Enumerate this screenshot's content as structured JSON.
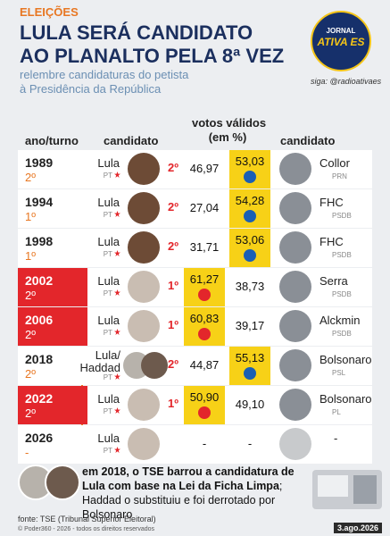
{
  "header": {
    "section": "ELEIÇÕES",
    "title_lines": [
      "LULA SERÁ CANDIDATO",
      "AO PLANALTO PELA 8ª VEZ"
    ],
    "subtitle_lines": [
      "relembre candidaturas do petista",
      "à Presidência da República"
    ],
    "logo_lines": [
      "JORNAL",
      "ATIVA ES"
    ],
    "credit": "siga: @radioativaes"
  },
  "table": {
    "columns": [
      "ano/turno",
      "candidato",
      "votos válidos",
      "(em %)",
      "candidato"
    ],
    "rows": [
      {
        "year": "1989",
        "turn": "2º",
        "candidate": [
          "Lula"
        ],
        "party": "PT",
        "place": "2º",
        "lula_pct": "46,97",
        "opp_pct": "53,03",
        "opponent": "Collor",
        "opp_party": "PRN",
        "winner": "opponent"
      },
      {
        "year": "1994",
        "turn": "1º",
        "candidate": [
          "Lula"
        ],
        "party": "PT",
        "place": "2º",
        "lula_pct": "27,04",
        "opp_pct": "54,28",
        "opponent": "FHC",
        "opp_party": "PSDB",
        "winner": "opponent"
      },
      {
        "year": "1998",
        "turn": "1º",
        "candidate": [
          "Lula"
        ],
        "party": "PT",
        "place": "2º",
        "lula_pct": "31,71",
        "opp_pct": "53,06",
        "opponent": "FHC",
        "opp_party": "PSDB",
        "winner": "opponent"
      },
      {
        "year": "2002",
        "turn": "2º",
        "candidate": [
          "Lula"
        ],
        "party": "PT",
        "place": "1º",
        "lula_pct": "61,27",
        "opp_pct": "38,73",
        "opponent": "Serra",
        "opp_party": "PSDB",
        "winner": "lula"
      },
      {
        "year": "2006",
        "turn": "2º",
        "candidate": [
          "Lula"
        ],
        "party": "PT",
        "place": "1º",
        "lula_pct": "60,83",
        "opp_pct": "39,17",
        "opponent": "Alckmin",
        "opp_party": "PSDB",
        "winner": "lula"
      },
      {
        "year": "2018",
        "turn": "2º",
        "candidate": [
          "Lula/",
          "Haddad"
        ],
        "party": "PT",
        "place": "2º",
        "lula_pct": "44,87",
        "opp_pct": "55,13",
        "opponent": "Bolsonaro",
        "opp_party": "PSL",
        "winner": "opponent"
      },
      {
        "year": "2022",
        "turn": "2º",
        "candidate": [
          "Lula"
        ],
        "party": "PT",
        "place": "1º",
        "lula_pct": "50,90",
        "opp_pct": "49,10",
        "opponent": "Bolsonaro",
        "opp_party": "PL",
        "winner": "lula"
      },
      {
        "year": "2026",
        "turn": "-",
        "candidate": [
          "Lula"
        ],
        "party": "PT",
        "lula_pct": "-",
        "opp_pct": "-",
        "opponent": "-"
      }
    ]
  },
  "note": {
    "bold": "em 2018, o TSE barrou a candidatura de Lula com base na Lei da Ficha Limpa",
    "regular": "; Haddad o substituiu e foi derrotado por Bolsonaro"
  },
  "footer": {
    "source": "fonte: TSE (Tribunal Superior Eleitoral)",
    "copyright": "© Poder360 - 2026 - todos os direitos reservados",
    "date": "3.ago.2026"
  }
}
